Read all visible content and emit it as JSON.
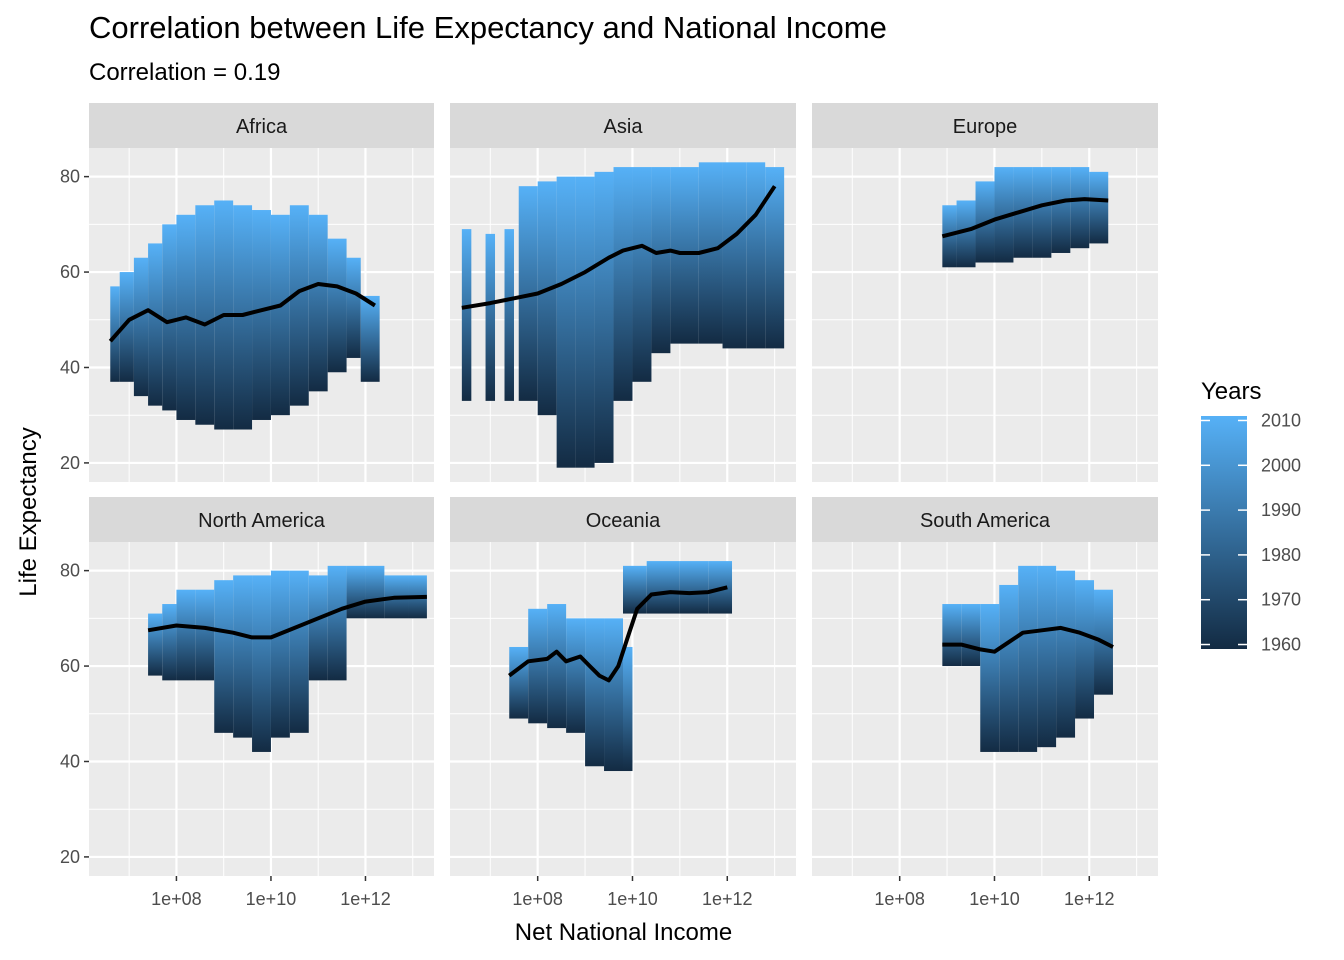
{
  "title": "Correlation between Life Expectancy and National Income",
  "subtitle": "Correlation = 0.19",
  "chart_data": {
    "type": "scatter",
    "xlabel": "Net National Income",
    "ylabel": "Life Expectancy",
    "x_scale": "log10",
    "x_ticks": [
      100000000.0,
      10000000000.0,
      1000000000000.0
    ],
    "x_tick_labels": [
      "1e+08",
      "1e+10",
      "1e+12"
    ],
    "y_ticks": [
      20,
      40,
      60,
      80
    ],
    "y_tick_labels": [
      "20",
      "40",
      "60",
      "80"
    ],
    "ylim": [
      16,
      86
    ],
    "xlim_log10": [
      6.15,
      13.45
    ],
    "color_legend": {
      "title": "Years",
      "ticks": [
        1960,
        1970,
        1980,
        1990,
        2000,
        2010
      ],
      "tick_labels": [
        "1960",
        "1970",
        "1980",
        "1990",
        "2000",
        "2010"
      ],
      "range": [
        1959,
        2011
      ],
      "low_color": "#132B43",
      "high_color": "#56B1F7"
    },
    "smooth_color": "#000000",
    "facets": [
      {
        "name": "Africa",
        "smooth": [
          [
            6.6,
            45.5
          ],
          [
            7.0,
            50
          ],
          [
            7.4,
            52
          ],
          [
            7.8,
            49.5
          ],
          [
            8.2,
            50.5
          ],
          [
            8.6,
            49
          ],
          [
            9.0,
            51
          ],
          [
            9.4,
            51
          ],
          [
            9.8,
            52
          ],
          [
            10.2,
            53
          ],
          [
            10.6,
            56
          ],
          [
            11.0,
            57.5
          ],
          [
            11.4,
            57
          ],
          [
            11.8,
            55.5
          ],
          [
            12.2,
            53
          ]
        ],
        "columns": [
          [
            6.6,
            6.8,
            37,
            57
          ],
          [
            6.8,
            7.1,
            37,
            60
          ],
          [
            7.1,
            7.4,
            34,
            63
          ],
          [
            7.4,
            7.7,
            32,
            66
          ],
          [
            7.7,
            8.0,
            31,
            70
          ],
          [
            8.0,
            8.4,
            29,
            72
          ],
          [
            8.4,
            8.8,
            28,
            74
          ],
          [
            8.8,
            9.2,
            27,
            75
          ],
          [
            9.2,
            9.6,
            27,
            74
          ],
          [
            9.6,
            10.0,
            29,
            73
          ],
          [
            10.0,
            10.4,
            30,
            72
          ],
          [
            10.4,
            10.8,
            32,
            74
          ],
          [
            10.8,
            11.2,
            35,
            72
          ],
          [
            11.2,
            11.6,
            39,
            67
          ],
          [
            11.6,
            11.9,
            42,
            63
          ],
          [
            11.9,
            12.3,
            37,
            55
          ]
        ]
      },
      {
        "name": "Asia",
        "smooth": [
          [
            6.4,
            52.5
          ],
          [
            7.0,
            53.5
          ],
          [
            7.5,
            54.5
          ],
          [
            8.0,
            55.5
          ],
          [
            8.5,
            57.5
          ],
          [
            9.0,
            60
          ],
          [
            9.5,
            63
          ],
          [
            9.8,
            64.5
          ],
          [
            10.2,
            65.5
          ],
          [
            10.5,
            64
          ],
          [
            10.8,
            64.5
          ],
          [
            11.0,
            64
          ],
          [
            11.4,
            64
          ],
          [
            11.8,
            65
          ],
          [
            12.2,
            68
          ],
          [
            12.6,
            72
          ],
          [
            13.0,
            78
          ]
        ],
        "columns": [
          [
            6.4,
            6.6,
            33,
            69
          ],
          [
            6.9,
            7.1,
            33,
            68
          ],
          [
            7.3,
            7.5,
            33,
            69
          ],
          [
            7.6,
            8.0,
            33,
            78
          ],
          [
            8.0,
            8.4,
            30,
            79
          ],
          [
            8.4,
            8.8,
            19,
            80
          ],
          [
            8.8,
            9.2,
            19,
            80
          ],
          [
            9.2,
            9.6,
            20,
            81
          ],
          [
            9.6,
            10.0,
            33,
            82
          ],
          [
            10.0,
            10.4,
            37,
            82
          ],
          [
            10.4,
            10.8,
            43,
            82
          ],
          [
            10.8,
            11.4,
            45,
            82
          ],
          [
            11.4,
            11.9,
            45,
            83
          ],
          [
            11.9,
            12.4,
            44,
            83
          ],
          [
            12.4,
            12.8,
            44,
            83
          ],
          [
            12.8,
            13.2,
            44,
            82
          ]
        ]
      },
      {
        "name": "Europe",
        "smooth": [
          [
            8.9,
            67.5
          ],
          [
            9.5,
            69
          ],
          [
            10.0,
            71
          ],
          [
            10.5,
            72.5
          ],
          [
            11.0,
            74
          ],
          [
            11.5,
            75
          ],
          [
            11.9,
            75.3
          ],
          [
            12.4,
            75
          ]
        ],
        "columns": [
          [
            8.9,
            9.2,
            61,
            74
          ],
          [
            9.2,
            9.6,
            61,
            75
          ],
          [
            9.6,
            10.0,
            62,
            79
          ],
          [
            10.0,
            10.4,
            62,
            82
          ],
          [
            10.4,
            10.8,
            63,
            82
          ],
          [
            10.8,
            11.2,
            63,
            82
          ],
          [
            11.2,
            11.6,
            64,
            82
          ],
          [
            11.6,
            12.0,
            65,
            82
          ],
          [
            12.0,
            12.4,
            66,
            81
          ]
        ]
      },
      {
        "name": "North America",
        "smooth": [
          [
            7.4,
            67.5
          ],
          [
            8.0,
            68.5
          ],
          [
            8.6,
            68
          ],
          [
            9.2,
            67
          ],
          [
            9.6,
            66
          ],
          [
            10.0,
            66
          ],
          [
            10.5,
            68
          ],
          [
            11.0,
            70
          ],
          [
            11.5,
            72
          ],
          [
            12.0,
            73.5
          ],
          [
            12.6,
            74.3
          ],
          [
            13.3,
            74.5
          ]
        ],
        "columns": [
          [
            7.4,
            7.7,
            58,
            71
          ],
          [
            7.7,
            8.0,
            57,
            73
          ],
          [
            8.0,
            8.4,
            57,
            76
          ],
          [
            8.4,
            8.8,
            57,
            76
          ],
          [
            8.8,
            9.2,
            46,
            78
          ],
          [
            9.2,
            9.6,
            45,
            79
          ],
          [
            9.6,
            10.0,
            42,
            79
          ],
          [
            10.0,
            10.4,
            45,
            80
          ],
          [
            10.4,
            10.8,
            46,
            80
          ],
          [
            10.8,
            11.2,
            57,
            79
          ],
          [
            11.2,
            11.6,
            57,
            81
          ],
          [
            11.6,
            12.0,
            70,
            81
          ],
          [
            12.0,
            12.4,
            70,
            81
          ],
          [
            12.4,
            12.9,
            70,
            79
          ],
          [
            12.9,
            13.3,
            70,
            79
          ]
        ]
      },
      {
        "name": "Oceania",
        "smooth": [
          [
            7.4,
            58
          ],
          [
            7.8,
            61
          ],
          [
            8.2,
            61.5
          ],
          [
            8.4,
            63
          ],
          [
            8.6,
            61
          ],
          [
            8.9,
            62
          ],
          [
            9.1,
            60
          ],
          [
            9.3,
            58
          ],
          [
            9.5,
            57
          ],
          [
            9.7,
            60
          ],
          [
            9.9,
            66
          ],
          [
            10.1,
            72
          ],
          [
            10.4,
            75
          ],
          [
            10.8,
            75.5
          ],
          [
            11.2,
            75.3
          ],
          [
            11.6,
            75.5
          ],
          [
            12.0,
            76.5
          ]
        ],
        "columns": [
          [
            7.4,
            7.8,
            49,
            64
          ],
          [
            7.8,
            8.2,
            48,
            72
          ],
          [
            8.2,
            8.6,
            47,
            73
          ],
          [
            8.6,
            9.0,
            46,
            70
          ],
          [
            9.0,
            9.4,
            39,
            70
          ],
          [
            9.4,
            9.8,
            38,
            70
          ],
          [
            9.8,
            10.0,
            38,
            64
          ],
          [
            9.8,
            10.3,
            71,
            81
          ],
          [
            10.3,
            11.0,
            71,
            82
          ],
          [
            11.0,
            11.6,
            71,
            82
          ],
          [
            11.6,
            12.1,
            71,
            82
          ]
        ]
      },
      {
        "name": "South America",
        "smooth": [
          [
            8.9,
            64.5
          ],
          [
            9.3,
            64.5
          ],
          [
            9.7,
            63.5
          ],
          [
            10.0,
            63
          ],
          [
            10.3,
            65
          ],
          [
            10.6,
            67
          ],
          [
            11.0,
            67.5
          ],
          [
            11.4,
            68
          ],
          [
            11.8,
            67
          ],
          [
            12.2,
            65.5
          ],
          [
            12.5,
            64
          ]
        ],
        "columns": [
          [
            8.9,
            9.3,
            60,
            73
          ],
          [
            9.3,
            9.7,
            60,
            73
          ],
          [
            9.7,
            10.1,
            42,
            73
          ],
          [
            10.1,
            10.5,
            42,
            77
          ],
          [
            10.5,
            10.9,
            42,
            81
          ],
          [
            10.9,
            11.3,
            43,
            81
          ],
          [
            11.3,
            11.7,
            45,
            80
          ],
          [
            11.7,
            12.1,
            49,
            78
          ],
          [
            12.1,
            12.5,
            54,
            76
          ]
        ]
      }
    ]
  }
}
